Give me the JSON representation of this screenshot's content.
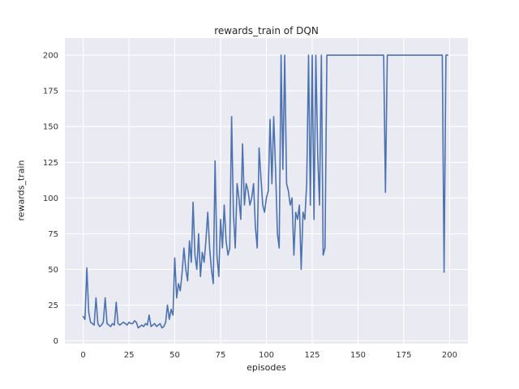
{
  "figure": {
    "title": "rewards_train of DQN",
    "xlabel": "episodes",
    "ylabel": "rewards_train"
  },
  "chart_data": {
    "type": "line",
    "title": "rewards_train of DQN",
    "xlabel": "episodes",
    "ylabel": "rewards_train",
    "x_start": 0,
    "x_step": 1,
    "xticks": [
      0,
      25,
      50,
      75,
      100,
      125,
      150,
      175,
      200
    ],
    "yticks": [
      0,
      25,
      50,
      75,
      100,
      125,
      150,
      175,
      200
    ],
    "xlim": [
      -10,
      210
    ],
    "ylim": [
      -2,
      212
    ],
    "grid": true,
    "legend": "none",
    "style": {
      "figure_bg": "#ffffff",
      "axes_bg": "#eaeaf2",
      "grid_color": "#ffffff",
      "line_color": "#4c72b0",
      "text_color": "#262626",
      "tick_color": "#333333"
    },
    "values": [
      17,
      15,
      51,
      20,
      13,
      12,
      11,
      30,
      12,
      10,
      11,
      13,
      30,
      12,
      11,
      10,
      12,
      11,
      27,
      12,
      11,
      12,
      13,
      12,
      11,
      13,
      12,
      12,
      14,
      13,
      9,
      10,
      11,
      10,
      12,
      11,
      18,
      10,
      11,
      12,
      10,
      11,
      12,
      9,
      10,
      13,
      25,
      15,
      22,
      18,
      58,
      30,
      40,
      35,
      48,
      65,
      50,
      42,
      70,
      55,
      97,
      60,
      50,
      75,
      45,
      62,
      55,
      70,
      90,
      65,
      50,
      40,
      126,
      60,
      45,
      85,
      65,
      95,
      70,
      60,
      65,
      157,
      90,
      65,
      110,
      100,
      85,
      138,
      95,
      110,
      105,
      95,
      100,
      110,
      80,
      65,
      135,
      115,
      95,
      90,
      100,
      105,
      155,
      110,
      157,
      120,
      75,
      65,
      200,
      120,
      200,
      110,
      105,
      95,
      100,
      60,
      90,
      85,
      95,
      50,
      90,
      85,
      110,
      200,
      95,
      200,
      85,
      200,
      130,
      95,
      200,
      60,
      65,
      200,
      200,
      200,
      200,
      200,
      200,
      200,
      200,
      200,
      200,
      200,
      200,
      200,
      200,
      200,
      200,
      200,
      200,
      200,
      200,
      200,
      200,
      200,
      200,
      200,
      200,
      200,
      200,
      200,
      200,
      200,
      200,
      104,
      200,
      200,
      200,
      200,
      200,
      200,
      200,
      200,
      200,
      200,
      200,
      200,
      200,
      200,
      200,
      200,
      200,
      200,
      200,
      200,
      200,
      200,
      200,
      200,
      200,
      200,
      200,
      200,
      200,
      200,
      200,
      48,
      200,
      200
    ]
  }
}
